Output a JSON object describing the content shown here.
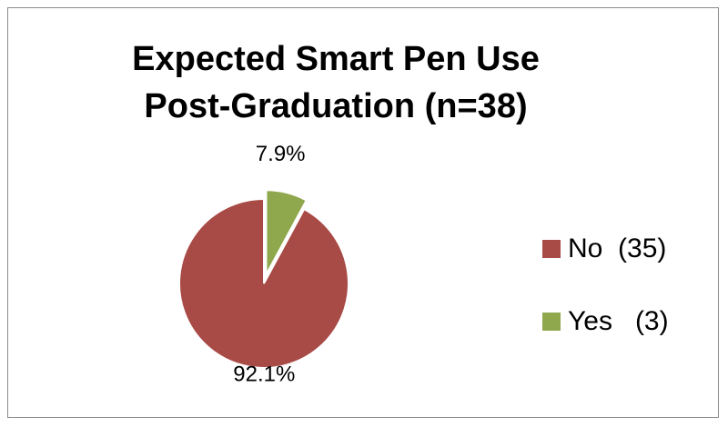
{
  "chart_data": {
    "type": "pie",
    "title_lines": [
      "Expected Smart Pen Use",
      "Post-Graduation (n=38)"
    ],
    "slices": [
      {
        "label": "Yes",
        "legend_label": "Yes   (3)",
        "count": 3,
        "percent_label": "7.9%",
        "color": "#8fa84e",
        "exploded": true
      },
      {
        "label": "No",
        "legend_label": "No  (35)",
        "count": 35,
        "percent_label": "92.1%",
        "color": "#a84a45",
        "exploded": false
      }
    ],
    "legend_order": [
      "No",
      "Yes"
    ],
    "legend_position": "right"
  }
}
